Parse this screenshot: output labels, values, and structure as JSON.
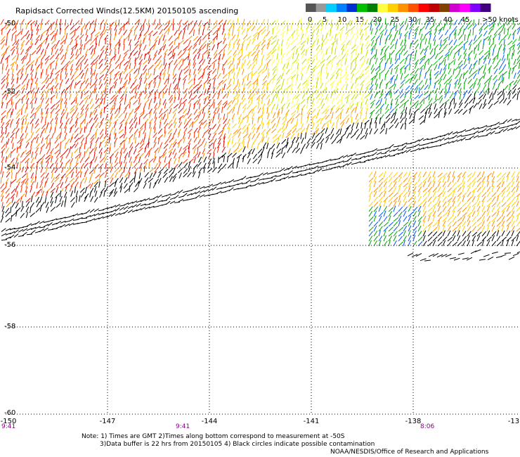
{
  "title": "Rapidsact Corrected Winds(12.5KM) 20150105 ascending",
  "legend": {
    "labels": [
      "0",
      "5",
      "10",
      "15",
      "20",
      "25",
      "30",
      "35",
      "40",
      "45",
      ">50 knots"
    ],
    "colors": [
      "#555555",
      "#999999",
      "#00d0ff",
      "#0080ff",
      "#0030d0",
      "#00c000",
      "#008000",
      "#ffff40",
      "#ffd000",
      "#ff9000",
      "#ff5000",
      "#ff0000",
      "#c00000",
      "#804000",
      "#d000d0",
      "#ff00ff",
      "#8000ff",
      "#400080"
    ]
  },
  "axes": {
    "y_ticks": [
      "-50",
      "-52",
      "-54",
      "-56",
      "-58",
      "-60"
    ],
    "x_ticks": [
      "-150",
      "-147",
      "-144",
      "-141",
      "-138",
      "-13"
    ]
  },
  "times": [
    "9:41",
    "9:41",
    "8:06"
  ],
  "notes": {
    "line1": "Note: 1) Times are GMT 2)Times along bottom correspond to measurement at -50S",
    "line2": "3)Data buffer is 22 hrs from 20150105 4) Black circles indicate possible contamination",
    "credit": "NOAA/NESDIS/Office of Research and Applications"
  }
}
